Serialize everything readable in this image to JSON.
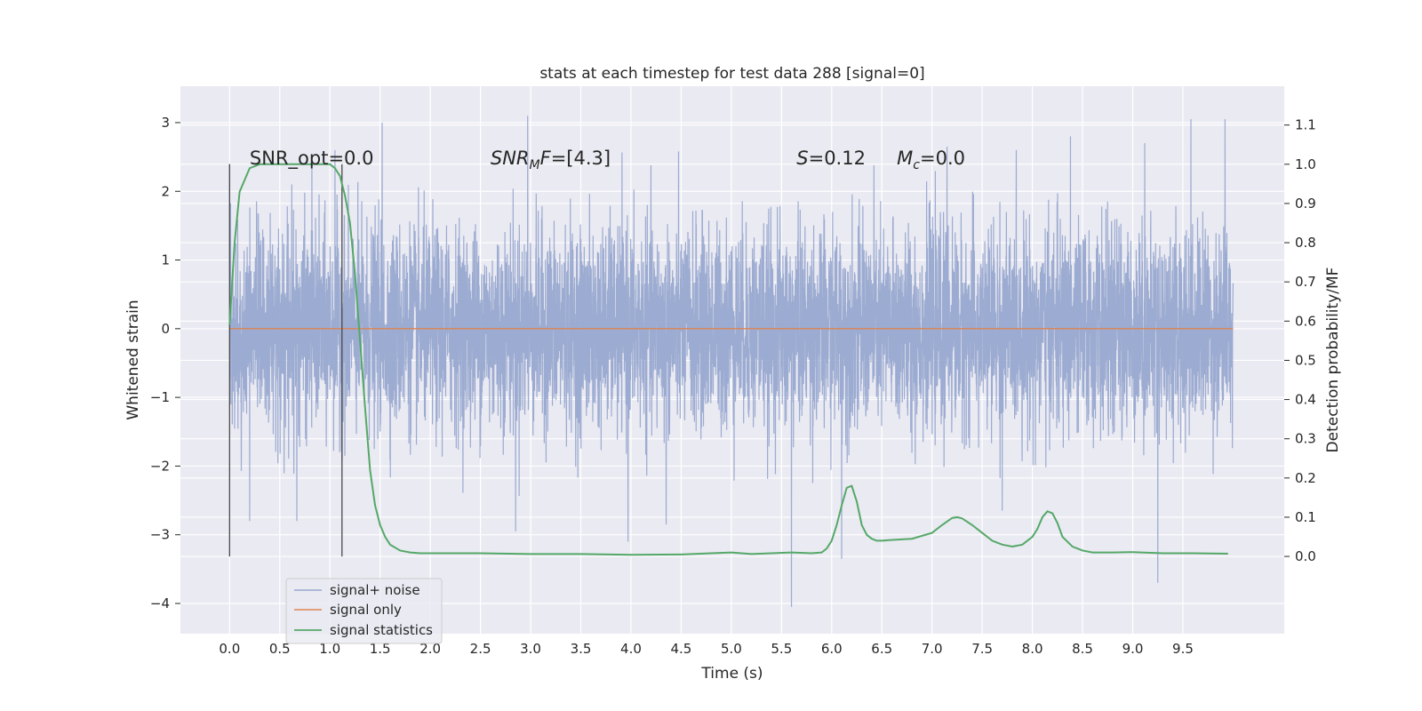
{
  "chart_data": {
    "type": "line",
    "title": "stats at each timestep for test data 288 [signal=0]",
    "xlabel": "Time (s)",
    "ylabel": "Whitened strain",
    "ylabel_right": "Detection probability/MF",
    "xlim": [
      -0.49,
      10.51
    ],
    "ylim": [
      -4.44,
      3.53
    ],
    "ylim_right": [
      -0.197,
      1.199
    ],
    "x_ticks": [
      0.0,
      0.5,
      1.0,
      1.5,
      2.0,
      2.5,
      3.0,
      3.5,
      4.0,
      4.5,
      5.0,
      5.5,
      6.0,
      6.5,
      7.0,
      7.5,
      8.0,
      8.5,
      9.0,
      9.5
    ],
    "x_tick_labels": [
      "0.0",
      "0.5",
      "1.0",
      "1.5",
      "2.0",
      "2.5",
      "3.0",
      "3.5",
      "4.0",
      "4.5",
      "5.0",
      "5.5",
      "6.0",
      "6.5",
      "7.0",
      "7.5",
      "8.0",
      "8.5",
      "9.0",
      "9.5"
    ],
    "y_ticks": [
      -4,
      -3,
      -2,
      -1,
      0,
      1,
      2,
      3
    ],
    "y_tick_labels": [
      "−4",
      "−3",
      "−2",
      "−1",
      "0",
      "1",
      "2",
      "3"
    ],
    "y_right_ticks": [
      0.0,
      0.1,
      0.2,
      0.3,
      0.4,
      0.5,
      0.6,
      0.7,
      0.8,
      0.9,
      1.0,
      1.1
    ],
    "y_right_tick_labels": [
      "0.0",
      "0.1",
      "0.2",
      "0.3",
      "0.4",
      "0.5",
      "0.6",
      "0.7",
      "0.8",
      "0.9",
      "1.0",
      "1.1"
    ],
    "grid": true,
    "legend_placement": "lower-left",
    "legend": [
      "signal+ noise",
      "signal only",
      "signal statistics"
    ],
    "colors": {
      "background": "#eaeaf2",
      "grid": "#ffffff",
      "noise": "#98a8cf",
      "signal": "#dd8452",
      "stat": "#55a868",
      "vline": "#4a4a4a"
    },
    "annotations": [
      {
        "text": "SNR_opt=0.0",
        "x": 0.2,
        "y_right": 1.0
      },
      {
        "text": "=[4.3]",
        "base": "SNR",
        "sub": "M",
        "suffix": "F",
        "x": 2.6,
        "y_right": 1.0
      },
      {
        "text": "=0.12",
        "base": "S",
        "x": 5.65,
        "y_right": 1.0
      },
      {
        "text": "=0.0",
        "base": "M",
        "sub": "c",
        "x": 6.65,
        "y_right": 1.0
      }
    ],
    "vertical_lines": [
      0.0,
      1.12
    ],
    "vertical_line_ylim_right": [
      0.0,
      1.0
    ],
    "series": [
      {
        "name": "signal+ noise",
        "x_range": [
          0,
          10
        ],
        "band_core": [
          -1.5,
          1.3
        ],
        "description_stat": "white noise, std ~0.75, spikes to about ±3",
        "peaks_positive": [
          [
            0.0,
            2.4
          ],
          [
            0.62,
            2.1
          ],
          [
            0.82,
            2.5
          ],
          [
            1.05,
            2.6
          ],
          [
            1.52,
            3.0
          ],
          [
            2.97,
            3.1
          ],
          [
            5.6,
            3.2
          ],
          [
            9.58,
            3.05
          ],
          [
            9.92,
            3.05
          ],
          [
            8.38,
            2.8
          ],
          [
            9.12,
            2.7
          ],
          [
            7.15,
            2.65
          ]
        ],
        "peaks_negative": [
          [
            0.2,
            -2.8
          ],
          [
            0.67,
            -2.8
          ],
          [
            2.85,
            -2.95
          ],
          [
            3.97,
            -3.1
          ],
          [
            5.6,
            -4.05
          ],
          [
            6.1,
            -3.35
          ],
          [
            9.25,
            -3.7
          ],
          [
            4.35,
            -2.85
          ],
          [
            7.7,
            -2.65
          ]
        ]
      },
      {
        "name": "signal only",
        "x": [
          0,
          10
        ],
        "y": [
          0,
          0
        ]
      },
      {
        "name": "signal statistics",
        "axis": "right",
        "x": [
          0.0,
          0.05,
          0.1,
          0.2,
          0.3,
          0.5,
          0.7,
          0.9,
          1.0,
          1.05,
          1.1,
          1.15,
          1.2,
          1.25,
          1.3,
          1.35,
          1.4,
          1.45,
          1.5,
          1.55,
          1.6,
          1.7,
          1.8,
          1.9,
          2.0,
          2.5,
          3.0,
          3.5,
          4.0,
          4.5,
          4.8,
          5.0,
          5.2,
          5.4,
          5.6,
          5.8,
          5.9,
          5.95,
          6.0,
          6.05,
          6.1,
          6.15,
          6.2,
          6.25,
          6.3,
          6.35,
          6.4,
          6.45,
          6.5,
          6.6,
          6.8,
          7.0,
          7.1,
          7.2,
          7.25,
          7.3,
          7.4,
          7.5,
          7.6,
          7.7,
          7.8,
          7.9,
          8.0,
          8.05,
          8.1,
          8.15,
          8.2,
          8.25,
          8.3,
          8.4,
          8.5,
          8.6,
          8.8,
          9.0,
          9.3,
          9.6,
          9.95
        ],
        "y": [
          0.59,
          0.8,
          0.93,
          0.99,
          1.0,
          1.0,
          1.0,
          1.0,
          1.0,
          0.99,
          0.97,
          0.92,
          0.85,
          0.72,
          0.55,
          0.38,
          0.22,
          0.13,
          0.08,
          0.05,
          0.03,
          0.015,
          0.01,
          0.008,
          0.008,
          0.008,
          0.006,
          0.006,
          0.004,
          0.005,
          0.008,
          0.01,
          0.006,
          0.008,
          0.01,
          0.008,
          0.01,
          0.02,
          0.04,
          0.08,
          0.13,
          0.175,
          0.18,
          0.14,
          0.08,
          0.055,
          0.045,
          0.04,
          0.04,
          0.042,
          0.045,
          0.06,
          0.08,
          0.098,
          0.1,
          0.097,
          0.08,
          0.06,
          0.04,
          0.03,
          0.025,
          0.03,
          0.05,
          0.07,
          0.1,
          0.115,
          0.11,
          0.085,
          0.05,
          0.025,
          0.015,
          0.01,
          0.01,
          0.011,
          0.008,
          0.008,
          0.007
        ]
      }
    ]
  }
}
